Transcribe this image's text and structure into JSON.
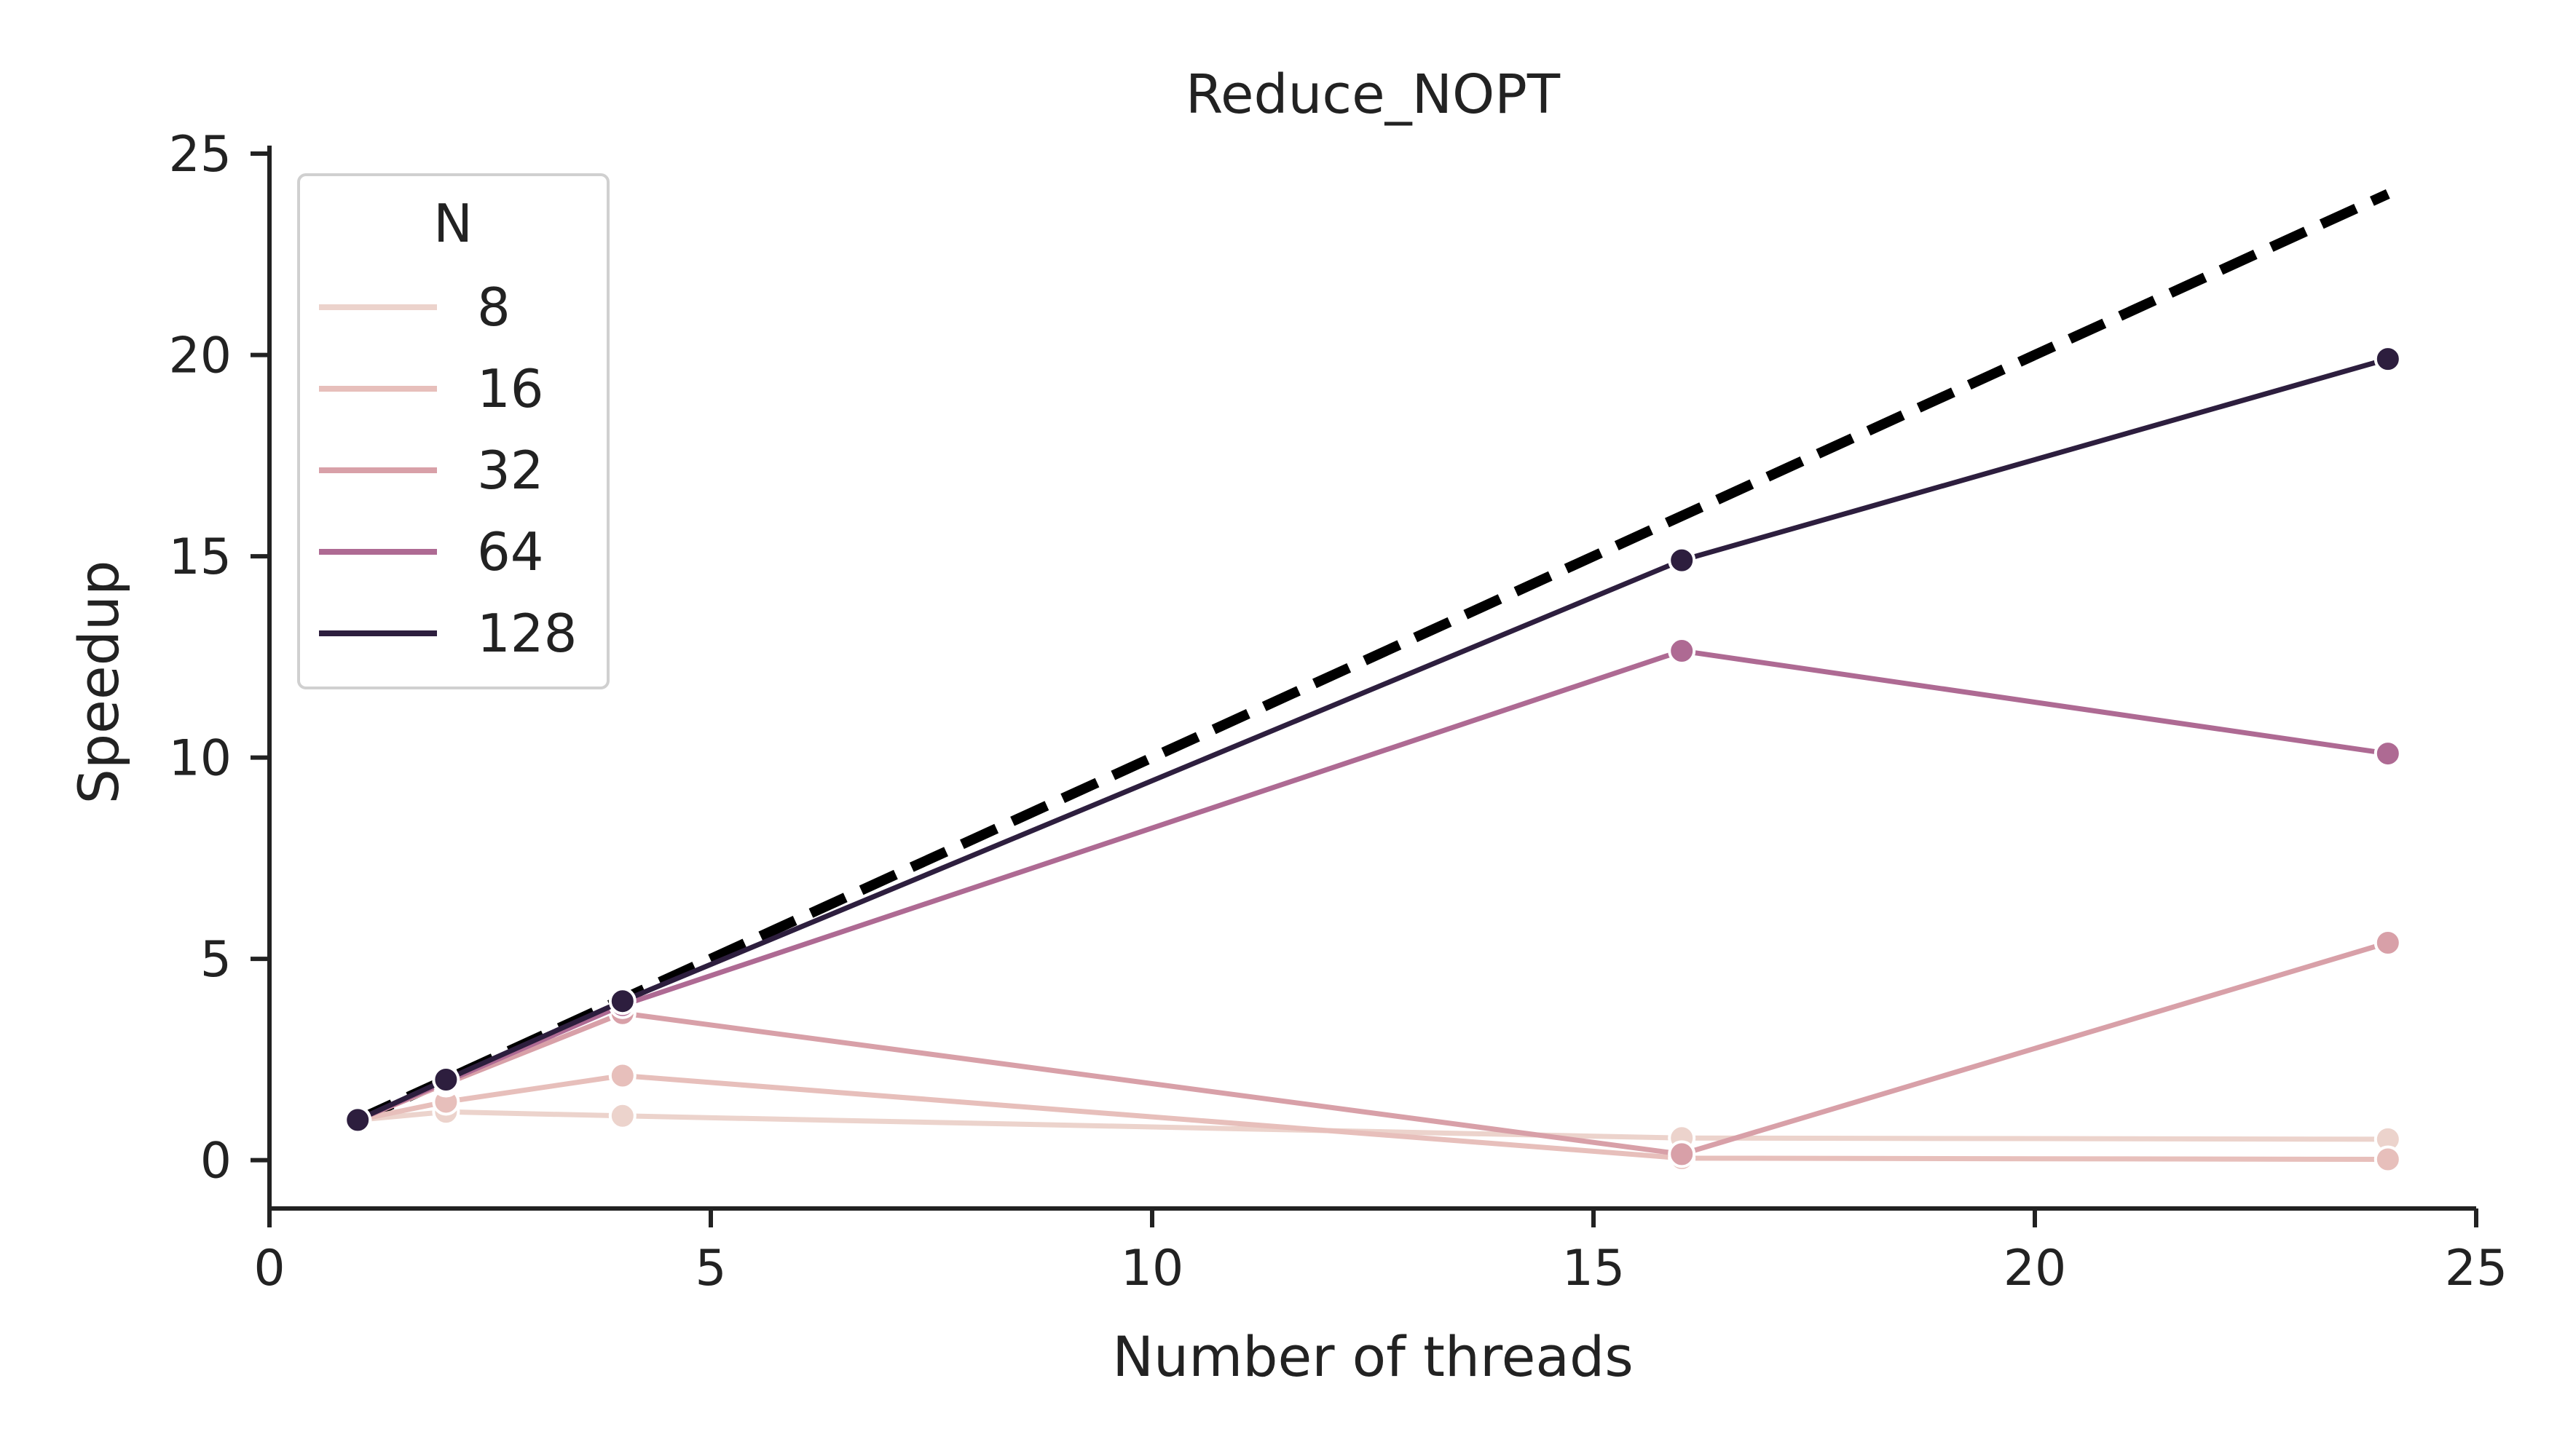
{
  "chart_data": {
    "type": "line",
    "title": "Reduce_NOPT",
    "xlabel": "Number of threads",
    "ylabel": "Speedup",
    "xlim": [
      0,
      25
    ],
    "ylim": [
      -1.2,
      25.2
    ],
    "xticks": [
      0,
      5,
      10,
      15,
      20,
      25
    ],
    "yticks": [
      0,
      5,
      10,
      15,
      20,
      25
    ],
    "grid": false,
    "legend": {
      "title": "N",
      "placement": "top-left"
    },
    "x": [
      1,
      2,
      4,
      16,
      24
    ],
    "series": [
      {
        "name": "8",
        "values": [
          1.0,
          1.2,
          1.1,
          0.55,
          0.52
        ],
        "color": "#ecd3cc"
      },
      {
        "name": "16",
        "values": [
          1.0,
          1.45,
          2.1,
          0.05,
          0.02
        ],
        "color": "#e7bfbb"
      },
      {
        "name": "32",
        "values": [
          1.0,
          1.9,
          3.65,
          0.15,
          5.4
        ],
        "color": "#d8a0a8"
      },
      {
        "name": "64",
        "values": [
          1.0,
          1.95,
          3.85,
          12.65,
          10.1
        ],
        "color": "#ae6a93"
      },
      {
        "name": "128",
        "values": [
          1.0,
          2.0,
          3.95,
          14.9,
          19.9
        ],
        "color": "#2d1e3e"
      }
    ],
    "reference_line": {
      "x": [
        1,
        24
      ],
      "y": [
        1,
        24
      ],
      "style": "dashed",
      "color": "#000000"
    }
  }
}
